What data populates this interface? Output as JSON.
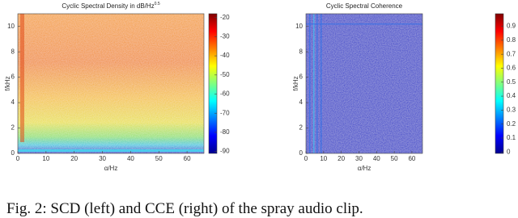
{
  "chart_data": [
    {
      "type": "heatmap",
      "title": "Cyclic Spectral Density in dB/Hz",
      "title_superscript": "0.5",
      "x_label": "α/Hz",
      "y_label": "f/kHz",
      "xlim": [
        0,
        66
      ],
      "xticks": [
        0,
        10,
        20,
        30,
        40,
        50,
        60
      ],
      "ylim": [
        0,
        11
      ],
      "yticks": [
        0,
        2,
        4,
        6,
        8,
        10
      ],
      "clim": [
        -91,
        -18
      ],
      "cticks": [
        -20,
        -30,
        -40,
        -50,
        -60,
        -70,
        -80,
        -90
      ]
    },
    {
      "type": "heatmap",
      "title": "Cyclic Spectral Coherence",
      "x_label": "α/Hz",
      "y_label": "f/kHz",
      "xlim": [
        0,
        66
      ],
      "xticks": [
        0,
        10,
        20,
        30,
        40,
        50,
        60
      ],
      "ylim": [
        0,
        11
      ],
      "yticks": [
        0,
        2,
        4,
        6,
        8,
        10
      ],
      "clim": [
        -0.01,
        0.99
      ],
      "cticks": [
        0.9,
        0.8,
        0.7,
        0.6,
        0.5,
        0.4,
        0.3,
        0.2,
        0.1,
        0
      ]
    }
  ],
  "caption": "Fig. 2: SCD (left) and CCE (right) of the spray audio clip."
}
